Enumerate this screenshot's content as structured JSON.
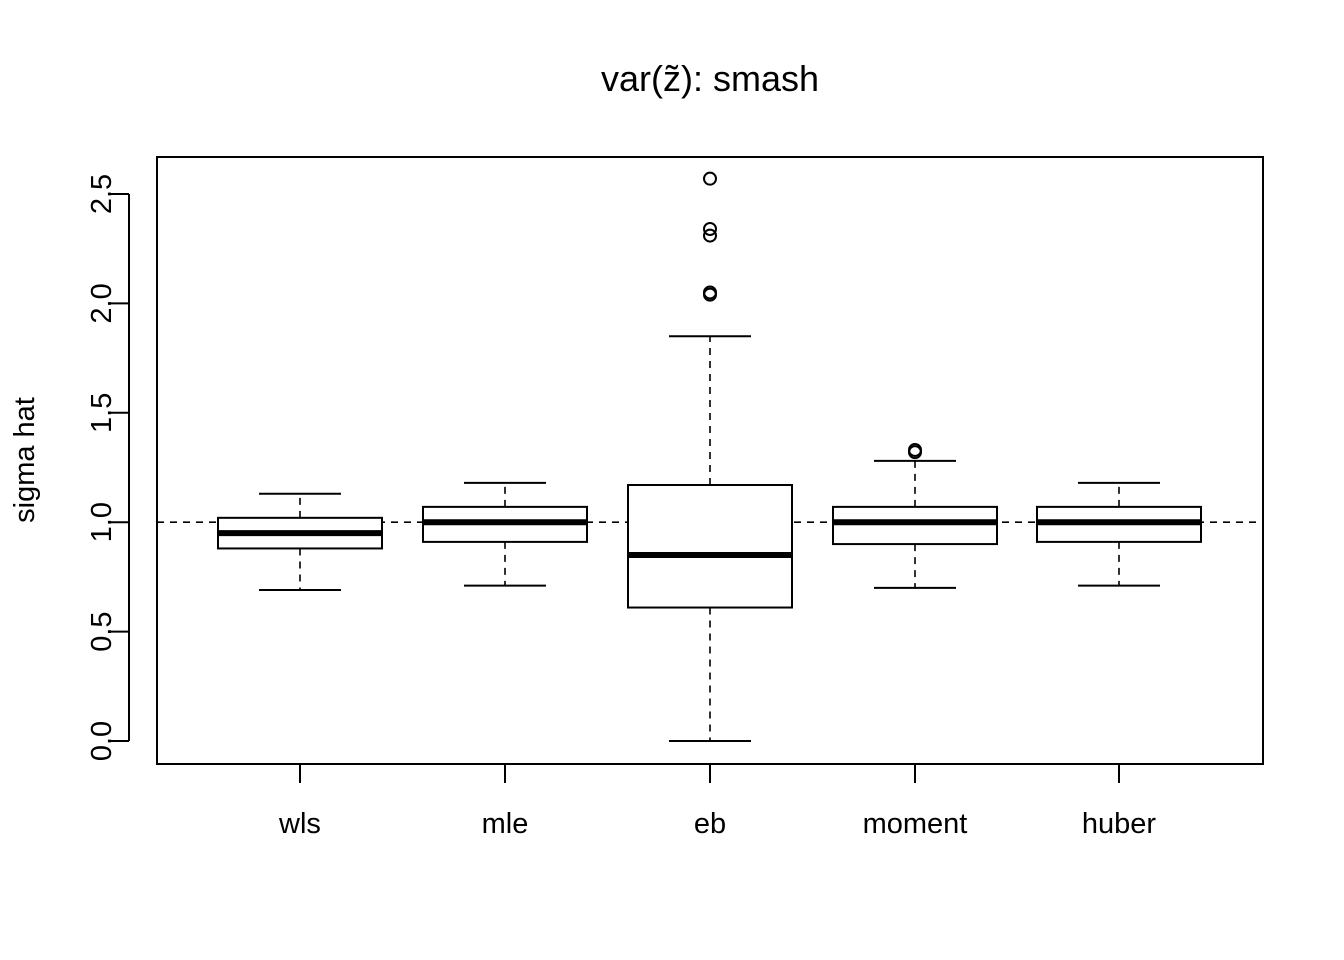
{
  "chart_data": {
    "type": "boxplot",
    "title": "var(z̃): smash",
    "xlabel": "",
    "ylabel": "sigma hat",
    "ylim": [
      -0.1,
      2.68
    ],
    "yticks": [
      "0.0",
      "0.5",
      "1.0",
      "1.5",
      "2.0",
      "2.5"
    ],
    "reference_line": 1.0,
    "grid": false,
    "categories": [
      "wls",
      "mle",
      "eb",
      "moment",
      "huber"
    ],
    "boxes": [
      {
        "category": "wls",
        "whisker_low": 0.69,
        "q1": 0.88,
        "median": 0.95,
        "q3": 1.02,
        "whisker_high": 1.13,
        "outliers": []
      },
      {
        "category": "mle",
        "whisker_low": 0.71,
        "q1": 0.91,
        "median": 1.0,
        "q3": 1.07,
        "whisker_high": 1.18,
        "outliers": []
      },
      {
        "category": "eb",
        "whisker_low": 0.0,
        "q1": 0.61,
        "median": 0.85,
        "q3": 1.17,
        "whisker_high": 1.85,
        "outliers": [
          2.04,
          2.05,
          2.31,
          2.34,
          2.57
        ]
      },
      {
        "category": "moment",
        "whisker_low": 0.7,
        "q1": 0.9,
        "median": 1.0,
        "q3": 1.07,
        "whisker_high": 1.28,
        "outliers": [
          1.32,
          1.33
        ]
      },
      {
        "category": "huber",
        "whisker_low": 0.71,
        "q1": 0.91,
        "median": 1.0,
        "q3": 1.07,
        "whisker_high": 1.18,
        "outliers": []
      }
    ]
  }
}
